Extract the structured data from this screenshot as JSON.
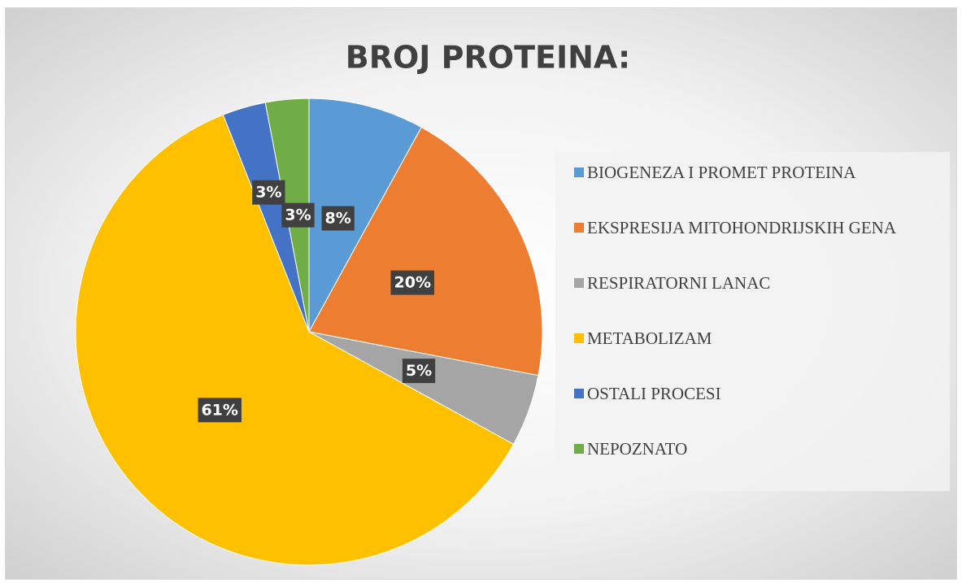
{
  "chart_data": {
    "type": "pie",
    "title": "BROJ PROTEINA:",
    "categories": [
      "BIOGENEZA I PROMET PROTEINA",
      "EKSPRESIJA MITOHONDRIJSKIH GENA",
      "RESPIRATORNI LANAC",
      "METABOLIZAM",
      "OSTALI PROCESI",
      "NEPOZNATO"
    ],
    "values": [
      8,
      20,
      5,
      61,
      3,
      3
    ],
    "value_labels": [
      "8%",
      "20%",
      "5%",
      "61%",
      "3%",
      "3%"
    ],
    "colors": [
      "#5b9bd5",
      "#ed7d31",
      "#a5a5a5",
      "#ffc000",
      "#4472c4",
      "#70ad47"
    ],
    "legend": "right"
  }
}
